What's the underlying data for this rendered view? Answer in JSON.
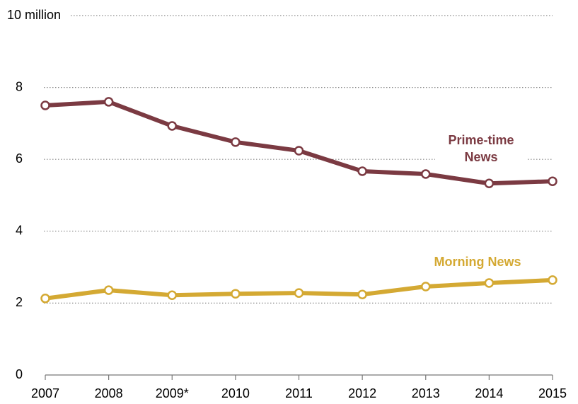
{
  "chart_data": {
    "type": "line",
    "categories": [
      "2007",
      "2008",
      "2009*",
      "2010",
      "2011",
      "2012",
      "2013",
      "2014",
      "2015"
    ],
    "series": [
      {
        "name": "Prime-time News",
        "color": "#7b3a42",
        "values": [
          7.5,
          7.6,
          6.93,
          6.48,
          6.24,
          5.67,
          5.59,
          5.33,
          5.39
        ]
      },
      {
        "name": "Morning News",
        "color": "#d4a933",
        "values": [
          2.13,
          2.36,
          2.22,
          2.26,
          2.28,
          2.24,
          2.46,
          2.56,
          2.64
        ]
      }
    ],
    "ylim": [
      0,
      10
    ],
    "yticks": [
      0,
      2,
      4,
      6,
      8,
      {
        "value": 10,
        "label": "10 million"
      }
    ],
    "grid": true
  }
}
